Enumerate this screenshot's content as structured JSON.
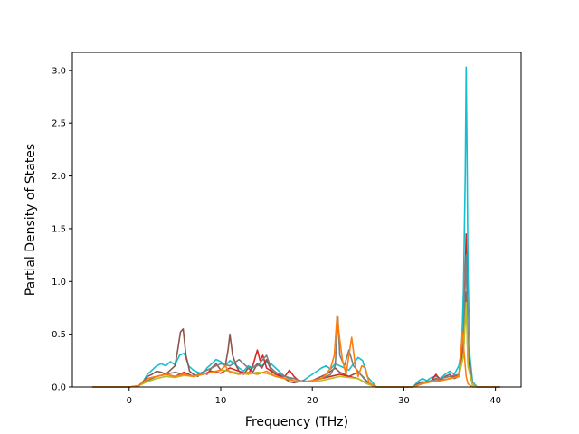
{
  "chart_data": {
    "type": "line",
    "title": "",
    "xlabel": "Frequency (THz)",
    "ylabel": "Partial Density of States",
    "xlim": [
      -6.2,
      42.8
    ],
    "ylim": [
      0.0,
      3.17
    ],
    "xticks": [
      0,
      10,
      20,
      30,
      40
    ],
    "xtick_labels": [
      "0",
      "10",
      "20",
      "30",
      "40"
    ],
    "yticks": [
      0.0,
      0.5,
      1.0,
      1.5,
      2.0,
      2.5,
      3.0
    ],
    "ytick_labels": [
      "0.0",
      "0.5",
      "1.0",
      "1.5",
      "2.0",
      "2.5",
      "3.0"
    ],
    "grid": false,
    "legend": "none",
    "colors": {
      "cyan": "#17becf",
      "brown": "#8c564b",
      "red": "#d62728",
      "gray": "#7f7f7f",
      "olive": "#bcbd22",
      "orange": "#ff7f0e",
      "pink": "#e377c2"
    },
    "series": [
      {
        "color": "#17becf",
        "x": [
          -4,
          -0.5,
          0,
          1,
          1.5,
          2,
          2.5,
          3,
          3.5,
          4,
          4.5,
          5,
          5.5,
          6,
          6.5,
          7,
          7.5,
          8,
          8.5,
          9,
          9.5,
          10,
          10.5,
          11,
          11.5,
          12,
          12.5,
          13,
          13.5,
          14,
          14.5,
          15,
          15.5,
          16,
          16.5,
          17,
          17.5,
          18,
          18.5,
          19,
          19.5,
          20,
          20.5,
          21,
          21.5,
          22,
          22.5,
          23,
          23.5,
          24,
          24.5,
          25,
          25.5,
          26,
          27,
          31,
          31.5,
          32,
          32.5,
          33,
          33.5,
          34,
          34.5,
          35,
          35.5,
          36,
          36.3,
          36.5,
          36.7,
          36.8,
          36.9,
          37,
          37.2,
          37.5,
          38,
          40.5
        ],
        "y": [
          0,
          0,
          0,
          0.01,
          0.05,
          0.12,
          0.16,
          0.2,
          0.22,
          0.2,
          0.24,
          0.21,
          0.3,
          0.32,
          0.2,
          0.16,
          0.14,
          0.12,
          0.18,
          0.22,
          0.26,
          0.24,
          0.2,
          0.25,
          0.22,
          0.18,
          0.15,
          0.2,
          0.18,
          0.22,
          0.2,
          0.24,
          0.22,
          0.18,
          0.14,
          0.1,
          0.08,
          0.06,
          0.05,
          0.06,
          0.09,
          0.12,
          0.15,
          0.18,
          0.2,
          0.17,
          0.22,
          0.2,
          0.18,
          0.16,
          0.22,
          0.28,
          0.25,
          0.1,
          0,
          0,
          0.05,
          0.08,
          0.06,
          0.09,
          0.1,
          0.08,
          0.12,
          0.15,
          0.12,
          0.2,
          0.35,
          0.9,
          2.0,
          3.03,
          2.2,
          1.1,
          0.3,
          0.05,
          0,
          0
        ]
      },
      {
        "color": "#8c564b",
        "x": [
          -4,
          -0.5,
          0,
          1,
          1.5,
          2,
          2.5,
          3,
          3.5,
          4,
          4.5,
          5,
          5.3,
          5.6,
          5.9,
          6.2,
          6.6,
          7,
          7.5,
          8,
          8.5,
          9,
          9.5,
          10,
          10.5,
          10.8,
          11,
          11.3,
          11.7,
          12,
          12.5,
          13,
          13.5,
          14,
          14.5,
          15,
          15.5,
          16,
          16.5,
          17,
          17.5,
          18,
          18.5,
          19,
          19.5,
          20,
          20.5,
          21,
          21.5,
          22,
          22.5,
          23,
          23.5,
          24,
          24.5,
          25,
          25.5,
          26,
          27,
          31,
          31.5,
          32,
          32.5,
          33,
          33.5,
          34,
          34.5,
          35,
          35.5,
          36,
          36.5,
          36.8,
          37,
          37.5,
          38,
          40.5
        ],
        "y": [
          0,
          0,
          0,
          0.01,
          0.04,
          0.1,
          0.12,
          0.15,
          0.14,
          0.12,
          0.16,
          0.2,
          0.35,
          0.52,
          0.55,
          0.3,
          0.15,
          0.12,
          0.1,
          0.14,
          0.12,
          0.18,
          0.22,
          0.16,
          0.2,
          0.35,
          0.5,
          0.3,
          0.2,
          0.15,
          0.12,
          0.18,
          0.14,
          0.22,
          0.18,
          0.26,
          0.16,
          0.12,
          0.1,
          0.08,
          0.05,
          0.04,
          0.05,
          0.06,
          0.05,
          0.06,
          0.08,
          0.1,
          0.12,
          0.15,
          0.18,
          0.14,
          0.12,
          0.1,
          0.12,
          0.14,
          0.1,
          0.05,
          0,
          0,
          0.03,
          0.05,
          0.04,
          0.06,
          0.08,
          0.06,
          0.1,
          0.12,
          0.08,
          0.1,
          0.3,
          0.9,
          0.2,
          0.02,
          0,
          0
        ]
      },
      {
        "color": "#d62728",
        "x": [
          -4,
          -0.5,
          0,
          1,
          2,
          3,
          4,
          5,
          6,
          7,
          8,
          9,
          10,
          11,
          12,
          13,
          13.5,
          14,
          14.3,
          14.6,
          15,
          15.5,
          16,
          17,
          17.5,
          18,
          18.5,
          19,
          20,
          21,
          22,
          23,
          24,
          25,
          26,
          27,
          31,
          32,
          33,
          33.5,
          34,
          35,
          36,
          36.5,
          36.8,
          37,
          37.5,
          38,
          40.5
        ],
        "y": [
          0,
          0,
          0,
          0.01,
          0.08,
          0.1,
          0.12,
          0.1,
          0.14,
          0.1,
          0.12,
          0.15,
          0.13,
          0.18,
          0.15,
          0.12,
          0.2,
          0.35,
          0.25,
          0.3,
          0.18,
          0.15,
          0.12,
          0.1,
          0.16,
          0.1,
          0.06,
          0.05,
          0.06,
          0.08,
          0.1,
          0.12,
          0.1,
          0.08,
          0.03,
          0,
          0,
          0.04,
          0.06,
          0.12,
          0.06,
          0.08,
          0.12,
          0.4,
          1.45,
          0.3,
          0.02,
          0,
          0
        ]
      },
      {
        "color": "#7f7f7f",
        "x": [
          -4,
          -0.5,
          0,
          1,
          2,
          3,
          4,
          5,
          6,
          7,
          8,
          9,
          10,
          11,
          12,
          12.5,
          13,
          14,
          15,
          15.5,
          16,
          17,
          18,
          19,
          20,
          21,
          22,
          22.5,
          22.8,
          23,
          23.5,
          24,
          24.5,
          25,
          26,
          27,
          31,
          32,
          33,
          34,
          35,
          36,
          36.5,
          36.8,
          37,
          37.5,
          38,
          40.5
        ],
        "y": [
          0,
          0,
          0,
          0.01,
          0.06,
          0.1,
          0.12,
          0.14,
          0.12,
          0.1,
          0.14,
          0.18,
          0.22,
          0.2,
          0.26,
          0.22,
          0.18,
          0.2,
          0.3,
          0.18,
          0.14,
          0.1,
          0.08,
          0.05,
          0.06,
          0.08,
          0.12,
          0.2,
          0.66,
          0.3,
          0.2,
          0.35,
          0.2,
          0.15,
          0.04,
          0,
          0,
          0.04,
          0.06,
          0.08,
          0.1,
          0.12,
          0.5,
          1.25,
          0.4,
          0.02,
          0,
          0
        ]
      },
      {
        "color": "#bcbd22",
        "x": [
          -4,
          -0.5,
          0,
          1,
          2,
          3,
          4,
          5,
          6,
          7,
          8,
          9,
          10,
          11,
          12,
          13,
          14,
          15,
          16,
          17,
          18,
          19,
          20,
          21,
          22,
          23,
          24,
          25,
          26,
          27,
          31,
          32,
          33,
          34,
          35,
          36,
          36.5,
          36.8,
          37,
          37.5,
          38,
          40.5
        ],
        "y": [
          0,
          0,
          0,
          0.01,
          0.05,
          0.08,
          0.1,
          0.09,
          0.11,
          0.1,
          0.12,
          0.14,
          0.16,
          0.15,
          0.13,
          0.12,
          0.14,
          0.13,
          0.1,
          0.08,
          0.06,
          0.05,
          0.05,
          0.06,
          0.08,
          0.1,
          0.09,
          0.08,
          0.03,
          0,
          0,
          0.03,
          0.05,
          0.06,
          0.08,
          0.1,
          0.3,
          0.8,
          0.2,
          0.02,
          0,
          0
        ]
      },
      {
        "color": "#ff7f0e",
        "x": [
          -4,
          -0.5,
          0,
          1,
          1.5,
          2,
          3,
          4,
          5,
          6,
          7,
          8,
          9,
          10,
          10.5,
          11,
          12,
          13,
          14,
          15,
          16,
          17,
          18,
          19,
          20,
          21,
          21.5,
          22,
          22.4,
          22.7,
          23,
          23.3,
          23.7,
          24,
          24.3,
          24.7,
          25,
          25.4,
          25.8,
          26.2,
          27,
          31,
          32,
          33,
          34,
          35,
          36,
          36.4,
          36.6,
          36.8,
          37,
          37.5,
          38,
          40.5
        ],
        "y": [
          0,
          0,
          0,
          0.01,
          0.04,
          0.08,
          0.1,
          0.12,
          0.1,
          0.12,
          0.1,
          0.12,
          0.14,
          0.16,
          0.2,
          0.14,
          0.12,
          0.14,
          0.12,
          0.15,
          0.1,
          0.08,
          0.06,
          0.05,
          0.06,
          0.08,
          0.12,
          0.18,
          0.3,
          0.68,
          0.45,
          0.25,
          0.12,
          0.3,
          0.47,
          0.2,
          0.1,
          0.2,
          0.18,
          0.04,
          0,
          0,
          0.03,
          0.05,
          0.06,
          0.08,
          0.1,
          0.52,
          0.3,
          0.1,
          0.03,
          0,
          0,
          0
        ]
      }
    ]
  }
}
